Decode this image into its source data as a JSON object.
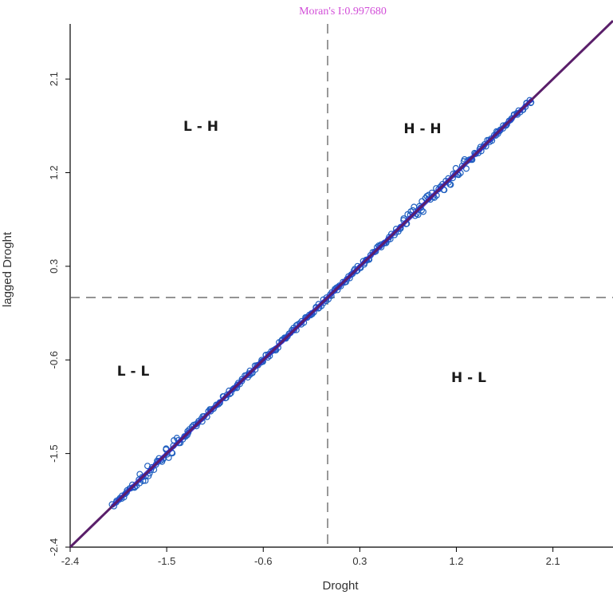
{
  "chart_data": {
    "type": "scatter",
    "title": "Moran's I:0.997680",
    "xlabel": "Droght",
    "ylabel": "lagged Droght",
    "xlim": [
      -2.4,
      2.66
    ],
    "ylim": [
      -2.4,
      2.63
    ],
    "xticks": [
      -2.4,
      -1.5,
      -0.6,
      0.3,
      1.2,
      2.1
    ],
    "yticks": [
      -2.4,
      -1.5,
      -0.6,
      0.3,
      1.2,
      2.1
    ],
    "xtick_labels": [
      "-2.4",
      "-1.5",
      "-0.6",
      "0.3",
      "1.2",
      "2.1"
    ],
    "ytick_labels": [
      "-2.4",
      "-1.5",
      "-0.6",
      "0.3",
      "1.2",
      "2.1"
    ],
    "grid": false,
    "quadrant_labels": [
      "L - H",
      "H - H",
      "L - L",
      "H - L"
    ],
    "reference_lines": {
      "x_mean": 0.0,
      "y_mean": 0.0
    },
    "regression": {
      "slope": 1.0,
      "intercept": 0.0
    },
    "point_range": {
      "min": -2.0,
      "max": 1.9,
      "count": 320
    },
    "colors": {
      "title": "#d24fd8",
      "points": "#1f5fbf",
      "line_core": "#2a2ad8",
      "regression": "#5a1f6a",
      "reference": "#555555",
      "axis": "#000000"
    }
  }
}
